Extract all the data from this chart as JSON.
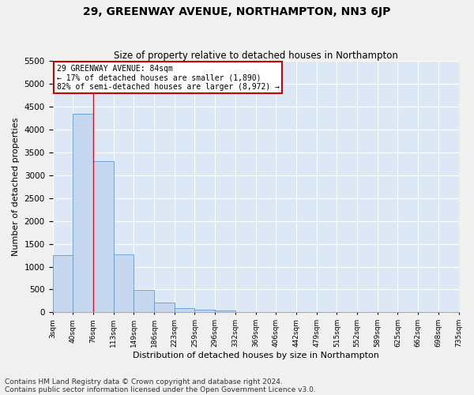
{
  "title": "29, GREENWAY AVENUE, NORTHAMPTON, NN3 6JP",
  "subtitle": "Size of property relative to detached houses in Northampton",
  "xlabel": "Distribution of detached houses by size in Northampton",
  "ylabel": "Number of detached properties",
  "bar_values": [
    1250,
    4350,
    3300,
    1270,
    490,
    220,
    90,
    60,
    50,
    0,
    0,
    0,
    0,
    0,
    0,
    0,
    0,
    0,
    0,
    0
  ],
  "x_labels": [
    "3sqm",
    "40sqm",
    "76sqm",
    "113sqm",
    "149sqm",
    "186sqm",
    "223sqm",
    "259sqm",
    "296sqm",
    "332sqm",
    "369sqm",
    "406sqm",
    "442sqm",
    "479sqm",
    "515sqm",
    "552sqm",
    "589sqm",
    "625sqm",
    "662sqm",
    "698sqm",
    "735sqm"
  ],
  "bar_color": "#c5d8f0",
  "bar_edge_color": "#5b9bd5",
  "ylim": [
    0,
    5500
  ],
  "yticks": [
    0,
    500,
    1000,
    1500,
    2000,
    2500,
    3000,
    3500,
    4000,
    4500,
    5000,
    5500
  ],
  "red_line_x": 2.0,
  "annotation_text": "29 GREENWAY AVENUE: 84sqm\n← 17% of detached houses are smaller (1,890)\n82% of semi-detached houses are larger (8,972) →",
  "annotation_box_color": "#ffffff",
  "annotation_box_edge": "#cc0000",
  "footer_line1": "Contains HM Land Registry data © Crown copyright and database right 2024.",
  "footer_line2": "Contains public sector information licensed under the Open Government Licence v3.0.",
  "background_color": "#dce8f5",
  "grid_color": "#ffffff",
  "title_fontsize": 10,
  "subtitle_fontsize": 8.5,
  "xlabel_fontsize": 8,
  "ylabel_fontsize": 8,
  "footer_fontsize": 6.5
}
